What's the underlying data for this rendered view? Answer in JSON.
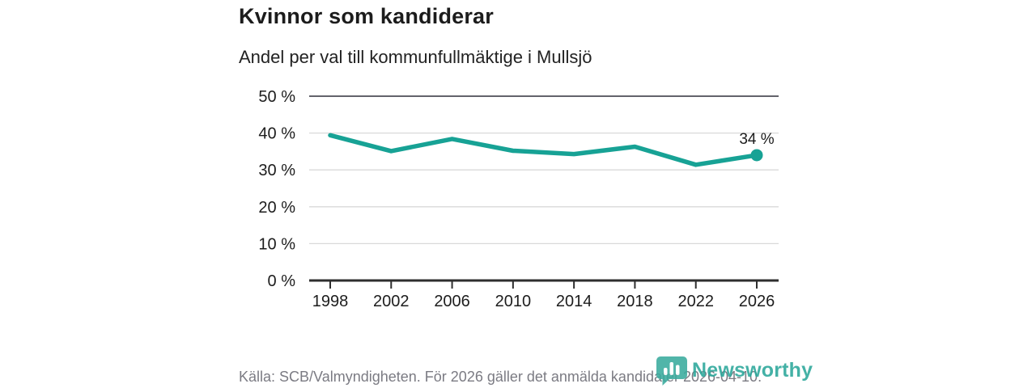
{
  "header": {
    "title": "Kvinnor som kandiderar",
    "subtitle": "Andel per val till kommunfullmäktige i Mullsjö"
  },
  "chart_data": {
    "type": "line",
    "title": "Kvinnor som kandiderar",
    "subtitle": "Andel per val till kommunfullmäktige i Mullsjö",
    "categories": [
      "1998",
      "2002",
      "2006",
      "2010",
      "2014",
      "2018",
      "2022",
      "2026"
    ],
    "values": [
      39.4,
      35.1,
      38.4,
      35.2,
      34.3,
      36.3,
      31.4,
      34
    ],
    "end_label": "34 %",
    "yticks": [
      0,
      10,
      20,
      30,
      40,
      50
    ],
    "ytick_suffix": " %",
    "ylim": [
      0,
      50
    ],
    "xlabel": "",
    "ylabel": "",
    "grid": true,
    "legend": "none",
    "line_color": "#17a295",
    "marker": "circle-on-last-point"
  },
  "footer": {
    "source": "Källa: SCB/Valmyndigheten. För 2026 gäller det anmälda kandidater 2026-04-10.",
    "logo_text": "Newsworthy"
  },
  "colors": {
    "accent": "#17a295",
    "logo_teal": "#2ba79a",
    "text_dark": "#1d1d1d",
    "text_gray": "#7b7b83",
    "grid_light": "#d9d9d9",
    "grid_top": "#63636b",
    "axis_dark": "#2e2e2e"
  }
}
